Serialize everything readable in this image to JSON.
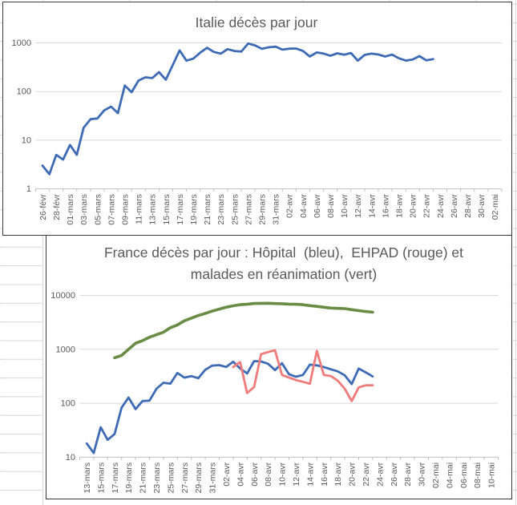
{
  "sheet": {
    "background": "#ffffff",
    "cell_grid_color": "#d8d8d8",
    "chart_border_color": "#3a3a3a",
    "text_color": "#595959",
    "gridline_color": "#d9d9d9",
    "axis_line_color": "#bfbfbf"
  },
  "chart_data": [
    {
      "type": "line",
      "scale": "log",
      "title": "Italie décès par jour",
      "y_tick_labels": [
        "1000",
        "100",
        "10",
        "1"
      ],
      "y_range": [
        1,
        1000
      ],
      "grid": true,
      "legend": "none",
      "x_tick_labels": [
        "26-févr",
        "28-févr",
        "01-mars",
        "03-mars",
        "05-mars",
        "07-mars",
        "09-mars",
        "11-mars",
        "13-mars",
        "15-mars",
        "17-mars",
        "19-mars",
        "21-mars",
        "23-mars",
        "25-mars",
        "27-mars",
        "29-mars",
        "31-mars",
        "02-avr",
        "04-avr",
        "06-avr",
        "08-avr",
        "10-avr",
        "12-avr",
        "14-avr",
        "16-avr",
        "18-avr",
        "20-avr",
        "22-avr",
        "24-avr",
        "26-avr",
        "28-avr",
        "30-avr",
        "02-mai"
      ],
      "x_note": "ticks every 2 days, data daily from 26-févr to 23-avr",
      "series": [
        {
          "name": "Italie décès par jour",
          "color": "#3e6bb5",
          "width": 2.8,
          "start_day": 0,
          "values": [
            3,
            2,
            5,
            4,
            8,
            5,
            18,
            27,
            28,
            41,
            49,
            36,
            133,
            97,
            168,
            196,
            189,
            250,
            175,
            350,
            700,
            430,
            475,
            627,
            793,
            651,
            601,
            743,
            683,
            662,
            969,
            889,
            756,
            812,
            837,
            727,
            760,
            766,
            681,
            525,
            636,
            604,
            542,
            610,
            570,
            619,
            431,
            566,
            602,
            578,
            525,
            575,
            482,
            433,
            454,
            534,
            437,
            464
          ]
        }
      ]
    },
    {
      "type": "line",
      "scale": "log",
      "title_line1": "France décès par jour : Hôpital  (bleu),  EHPAD (rouge) et",
      "title_line2": "malades en réanimation (vert)",
      "y_tick_labels": [
        "10000",
        "1000",
        "100",
        "10"
      ],
      "y_range": [
        10,
        10000
      ],
      "grid": true,
      "legend": "none",
      "x_tick_labels": [
        "13-mars",
        "15-mars",
        "17-mars",
        "19-mars",
        "21-mars",
        "23-mars",
        "25-mars",
        "27-mars",
        "29-mars",
        "31-mars",
        "02-avr",
        "04-avr",
        "06-avr",
        "08-avr",
        "10-avr",
        "12-avr",
        "14-avr",
        "16-avr",
        "18-avr",
        "20-avr",
        "22-avr",
        "24-avr",
        "26-avr",
        "28-avr",
        "30-avr",
        "02-mai",
        "04-mai",
        "06-mai",
        "08-mai",
        "10-mai"
      ],
      "x_note": "ticks every 2 days, data daily; blue from 13-mars, green from 17-mars, red from 03-avr, all to 23-avr",
      "series": [
        {
          "name": "Hôpital",
          "color": "#3e6bb5",
          "width": 2.8,
          "start_day": 0,
          "values": [
            18,
            12,
            36,
            21,
            27,
            83,
            128,
            78,
            110,
            112,
            186,
            240,
            231,
            365,
            299,
            319,
            292,
            418,
            499,
            509,
            471,
            588,
            441,
            357,
            605,
            597,
            541,
            412,
            554,
            345,
            310,
            335,
            520,
            505,
            470,
            427,
            390,
            330,
            227,
            440,
            375,
            315
          ]
        },
        {
          "name": "EHPAD",
          "color": "#f07b7b",
          "width": 2.8,
          "start_day": 21,
          "values": [
            470,
            580,
            155,
            200,
            815,
            890,
            960,
            335,
            300,
            270,
            250,
            230,
            935,
            335,
            320,
            262,
            186,
            110,
            197,
            215,
            215
          ]
        },
        {
          "name": "malades en réanimation",
          "color": "#698c45",
          "width": 3.6,
          "start_day": 4,
          "values": [
            699,
            771,
            1002,
            1297,
            1453,
            1674,
            1861,
            2082,
            2516,
            2827,
            3375,
            3787,
            4236,
            4632,
            5107,
            5565,
            6017,
            6399,
            6723,
            6838,
            7072,
            7131,
            7148,
            7066,
            7004,
            6883,
            6845,
            6730,
            6457,
            6248,
            6027,
            5833,
            5744,
            5683,
            5433,
            5218,
            5034,
            4880
          ]
        }
      ]
    }
  ]
}
